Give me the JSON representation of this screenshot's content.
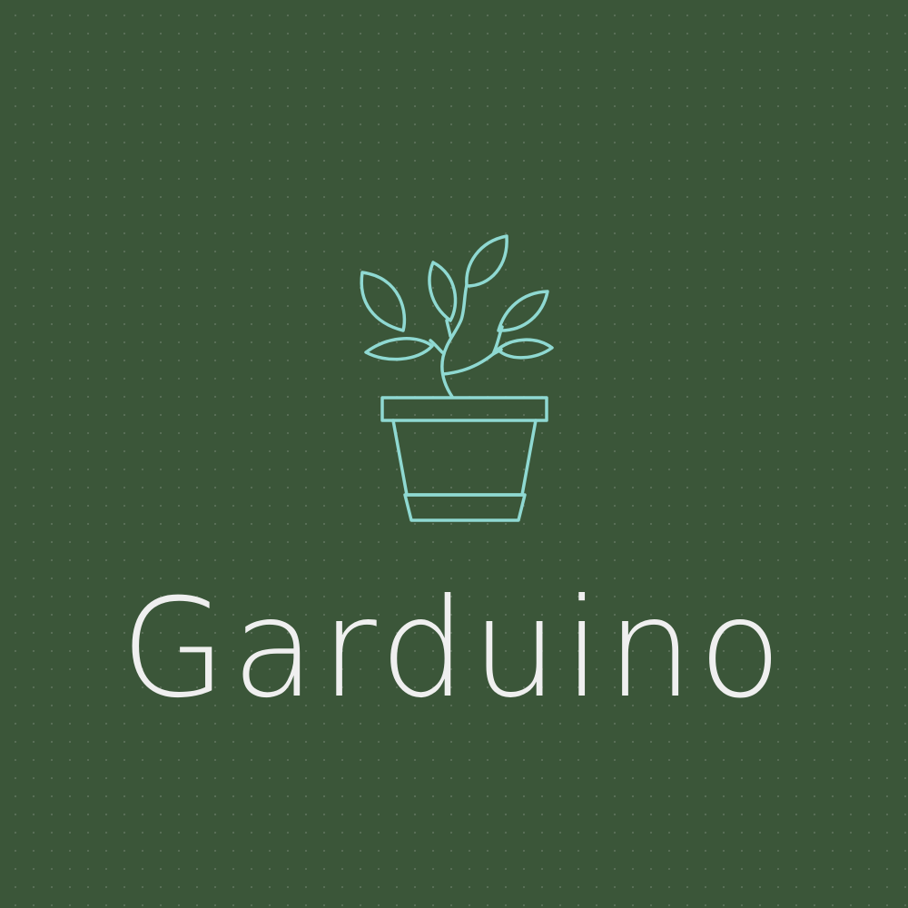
{
  "brand": {
    "name": "Garduino",
    "logo_icon": "potted-plant-icon"
  },
  "colors": {
    "background": "#3b5639",
    "icon_stroke": "#8fd9d2",
    "text": "#efefef"
  }
}
